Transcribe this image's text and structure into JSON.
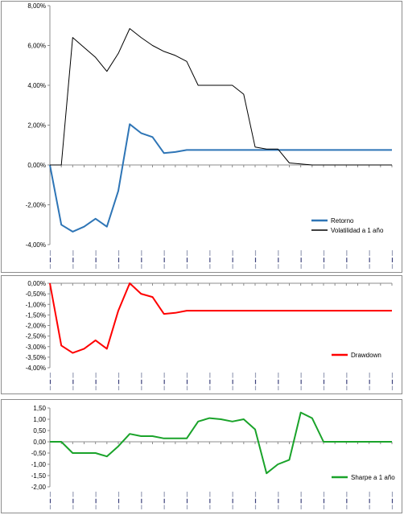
{
  "chart_data": [
    {
      "type": "line",
      "title": "",
      "xlabel": "",
      "ylabel": "",
      "ylim": [
        -4,
        8
      ],
      "yticks": [
        -4,
        -2,
        0,
        2,
        4,
        6,
        8
      ],
      "ytick_format": "percent_comma_2",
      "n_points": 31,
      "legend_position": "bottom-right",
      "series": [
        {
          "name": "Retorno",
          "color": "#2e75b6",
          "values": [
            0,
            -3.0,
            -3.35,
            -3.1,
            -2.7,
            -3.1,
            -1.3,
            2.05,
            1.6,
            1.4,
            0.6,
            0.65,
            0.75,
            0.75,
            0.75,
            0.75,
            0.75,
            0.75,
            0.75,
            0.75,
            0.75,
            0.75,
            0.75,
            0.75,
            0.75,
            0.75,
            0.75,
            0.75,
            0.75,
            0.75,
            0.75
          ]
        },
        {
          "name": "Volatilidad a 1 año",
          "color": "#000000",
          "values": [
            0,
            0,
            6.4,
            5.9,
            5.4,
            4.7,
            5.6,
            6.85,
            6.4,
            6.0,
            5.7,
            5.5,
            5.2,
            4.0,
            4.0,
            4.0,
            4.0,
            3.55,
            0.9,
            0.8,
            0.8,
            0.1,
            0.05,
            0,
            0,
            0,
            0,
            0,
            0,
            0,
            0
          ]
        }
      ]
    },
    {
      "type": "line",
      "title": "",
      "xlabel": "",
      "ylabel": "",
      "ylim": [
        -4,
        0
      ],
      "yticks": [
        -4,
        -3.5,
        -3,
        -2.5,
        -2,
        -1.5,
        -1,
        -0.5,
        0
      ],
      "ytick_format": "percent_comma_2",
      "n_points": 31,
      "legend_position": "bottom-right",
      "series": [
        {
          "name": "Drawdown",
          "color": "#ff0000",
          "values": [
            0,
            -2.95,
            -3.3,
            -3.1,
            -2.7,
            -3.1,
            -1.3,
            0,
            -0.5,
            -0.65,
            -1.45,
            -1.4,
            -1.3,
            -1.3,
            -1.3,
            -1.3,
            -1.3,
            -1.3,
            -1.3,
            -1.3,
            -1.3,
            -1.3,
            -1.3,
            -1.3,
            -1.3,
            -1.3,
            -1.3,
            -1.3,
            -1.3,
            -1.3,
            -1.3
          ]
        }
      ]
    },
    {
      "type": "line",
      "title": "",
      "xlabel": "",
      "ylabel": "",
      "ylim": [
        -2,
        1.5
      ],
      "yticks": [
        -2,
        -1.5,
        -1,
        -0.5,
        0,
        0.5,
        1,
        1.5
      ],
      "ytick_format": "decimal_comma_2",
      "n_points": 31,
      "legend_position": "bottom-right",
      "series": [
        {
          "name": "Sharpe a 1 año",
          "color": "#1aa32a",
          "values": [
            0,
            0,
            -0.5,
            -0.5,
            -0.5,
            -0.65,
            -0.2,
            0.35,
            0.25,
            0.25,
            0.15,
            0.15,
            0.15,
            0.9,
            1.05,
            1.0,
            0.9,
            1.0,
            0.55,
            -1.4,
            -1.0,
            -0.8,
            1.3,
            1.05,
            0,
            0,
            0,
            0,
            0,
            0,
            0
          ]
        }
      ]
    }
  ]
}
